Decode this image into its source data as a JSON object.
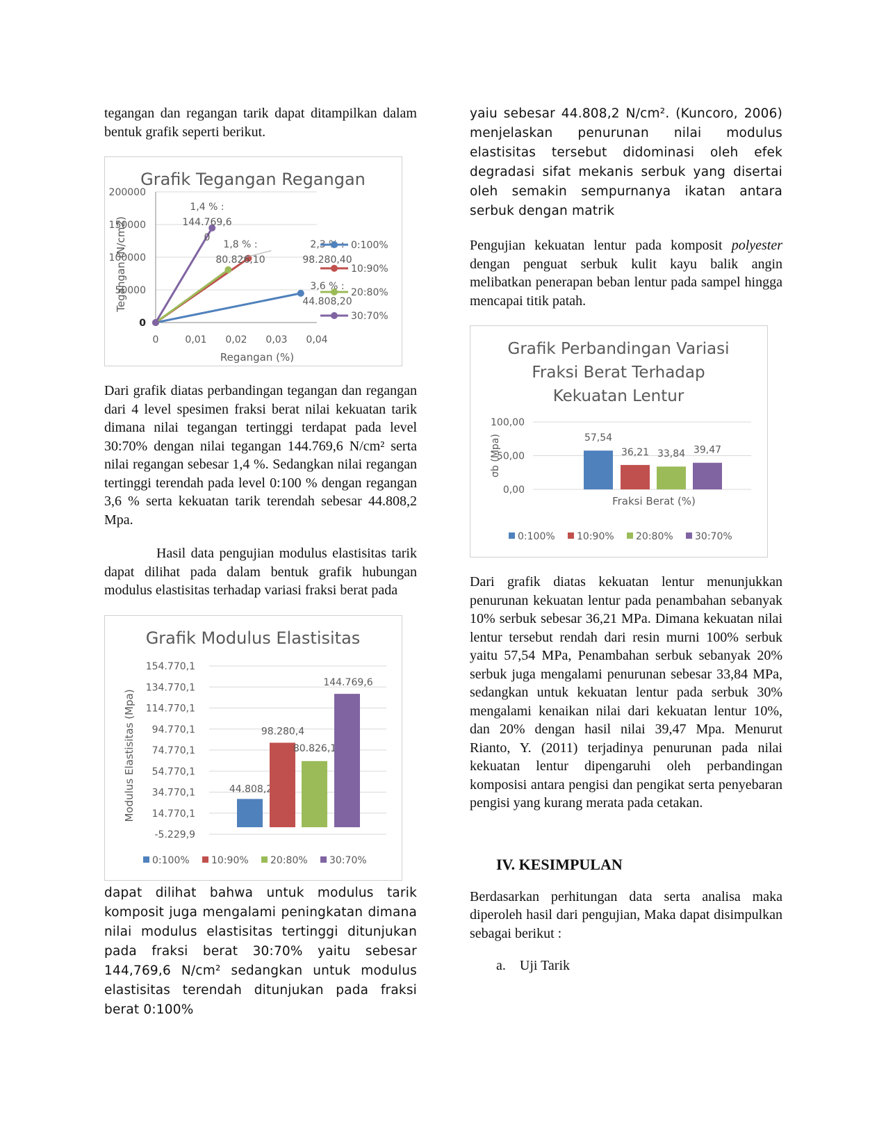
{
  "left": {
    "p1": "tegangan dan regangan tarik dapat ditampilkan dalam bentuk grafik seperti berikut.",
    "p2": "Dari grafik diatas perbandingan tegangan dan regangan dari 4 level spesimen fraksi berat nilai kekuatan tarik dimana nilai tegangan tertinggi terdapat pada level 30:70% dengan nilai tegangan 144.769,6 N/cm² serta nilai regangan sebesar 1,4 %. Sedangkan nilai regangan tertinggi terendah pada level 0:100 % dengan regangan 3,6 % serta kekuatan tarik terendah sebesar 44.808,2 Mpa.",
    "p3": "Hasil data pengujian modulus elastisitas tarik dapat dilihat pada dalam bentuk grafik hubungan modulus elastisitas terhadap variasi fraksi berat pada",
    "p4": "dapat dilihat bahwa untuk modulus tarik komposit juga mengalami peningkatan dimana nilai modulus elastisitas tertinggi ditunjukan pada fraksi berat 30:70% yaitu sebesar 144,769,6 N/cm² sedangkan untuk modulus elastisitas terendah ditunjukan pada fraksi berat 0:100%"
  },
  "right": {
    "p1": "yaiu sebesar 44.808,2 N/cm². (Kuncoro, 2006) menjelaskan penurunan nilai modulus elastisitas tersebut didominasi oleh efek degradasi sifat mekanis serbuk yang disertai oleh semakin sempurnanya ikatan antara serbuk dengan matrik",
    "p2_a": "Pengujian kekuatan lentur pada komposit",
    "p2_em": "polyester",
    "p2_b": "dengan penguat serbuk kulit kayu balik angin melibatkan penerapan beban lentur pada sampel hingga mencapai titik patah.",
    "p3": "Dari grafik diatas kekuatan lentur menunjukkan penurunan kekuatan lentur pada penambahan sebanyak 10% serbuk sebesar 36,21 MPa. Dimana kekuatan nilai lentur tersebut rendah dari resin murni 100% serbuk yaitu 57,54 MPa, Penambahan serbuk sebanyak 20% serbuk juga mengalami penurunan sebesar 33,84 MPa, sedangkan untuk kekuatan lentur pada serbuk 30% mengalami kenaikan nilai dari kekuatan lentur 10%, dan 20% dengan hasil nilai 39,47 Mpa. Menurut Rianto, Y. (2011) terjadinya penurunan pada nilai kekuatan lentur dipengaruhi oleh perbandingan komposisi antara pengisi dan pengikat serta penyebaran pengisi yang kurang merata pada cetakan.",
    "heading": "IV. KESIMPULAN",
    "p4": "Berdasarkan perhitungan data serta analisa maka diperoleh hasil dari pengujian, Maka dapat disimpulkan sebagai berikut :",
    "list_marker": "a.",
    "list_item": "Uji Tarik"
  },
  "colors": {
    "blue": "#4f81bd",
    "red": "#c0504d",
    "green": "#9bbb59",
    "purple": "#8064a2",
    "grid": "#d9d9d9",
    "axis_text": "#595959"
  },
  "chart_data": [
    {
      "type": "line",
      "title": "Grafik Tegangan Regangan",
      "xlabel": "Regangan (%)",
      "ylabel": "Tegangan (N/cm2)",
      "xlim": [
        0,
        0.04
      ],
      "ylim": [
        0,
        200000
      ],
      "x_ticks": [
        "0",
        "0,01",
        "0,02",
        "0,03",
        "0,04"
      ],
      "y_ticks": [
        "0",
        "50000",
        "100000",
        "150000",
        "200000"
      ],
      "legend": "right",
      "series": [
        {
          "name": "0:100%",
          "color": "#4f81bd",
          "x": [
            0,
            0.036
          ],
          "y": [
            0,
            44808.2
          ]
        },
        {
          "name": "10:90%",
          "color": "#c0504d",
          "x": [
            0,
            0.023
          ],
          "y": [
            0,
            98280.4
          ]
        },
        {
          "name": "20:80%",
          "color": "#9bbb59",
          "x": [
            0,
            0.018
          ],
          "y": [
            0,
            80826.1
          ]
        },
        {
          "name": "30:70%",
          "color": "#8064a2",
          "x": [
            0,
            0.014
          ],
          "y": [
            0,
            144769.6
          ]
        }
      ],
      "annotations": [
        {
          "lines": [
            "1,4 % :",
            "144.769,6",
            "0"
          ]
        },
        {
          "lines": [
            "1,8 % :",
            "80.826,10"
          ]
        },
        {
          "lines": [
            "2,3 % :",
            "98.280,40"
          ]
        },
        {
          "lines": [
            "3,6 % :",
            "44.808,20"
          ]
        }
      ]
    },
    {
      "type": "bar",
      "title": "Grafik Modulus Elastisitas",
      "ylabel": "Modulus Elastisitas (Mpa)",
      "xlabel": "",
      "ylim": [
        -5229.9,
        154770.1
      ],
      "y_ticks": [
        "-5.229,9",
        "14.770,1",
        "34.770,1",
        "54.770,1",
        "74.770,1",
        "94.770,1",
        "114.770,1",
        "134.770,1",
        "154.770,1"
      ],
      "legend": "bottom",
      "categories": [
        "0:100%",
        "10:90%",
        "20:80%",
        "30:70%"
      ],
      "values": [
        44808.2,
        98280.4,
        80826.1,
        144769.6
      ],
      "data_labels": [
        "44.808,2",
        "98.280,4",
        "80.826,1",
        "144.769,6"
      ],
      "colors": [
        "#4f81bd",
        "#c0504d",
        "#9bbb59",
        "#8064a2"
      ]
    },
    {
      "type": "bar",
      "title": "Grafik Perbandingan Variasi Fraksi Berat Terhadap Kekuatan Lentur",
      "title_lines": [
        "Grafik Perbandingan Variasi",
        "Fraksi Berat Terhadap",
        "Kekuatan Lentur"
      ],
      "xlabel": "Fraksi Berat (%)",
      "ylabel": "σb (Mpa)",
      "ylim": [
        0,
        100
      ],
      "y_ticks": [
        "0,00",
        "50,00",
        "100,00"
      ],
      "legend": "bottom",
      "categories": [
        "0:100%",
        "10:90%",
        "20:80%",
        "30:70%"
      ],
      "values": [
        57.54,
        36.21,
        33.84,
        39.47
      ],
      "data_labels": [
        "57,54",
        "36,21",
        "33,84",
        "39,47"
      ],
      "colors": [
        "#4f81bd",
        "#c0504d",
        "#9bbb59",
        "#8064a2"
      ]
    }
  ]
}
